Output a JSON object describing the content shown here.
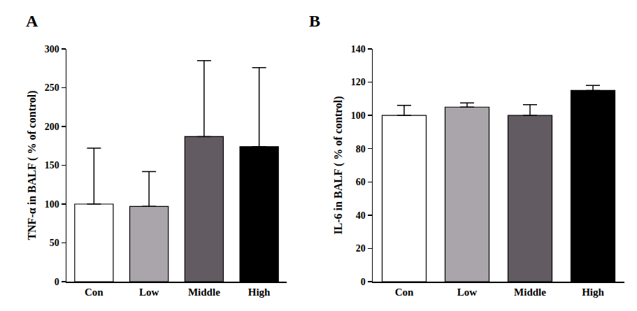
{
  "chart_data": [
    {
      "type": "bar",
      "title": "A",
      "categories": [
        "Con",
        "Low",
        "Middle",
        "High"
      ],
      "values": [
        100,
        97,
        187,
        174
      ],
      "errors": [
        72,
        45,
        98,
        102
      ],
      "colors": [
        "#ffffff",
        "#aaa5aa",
        "#625c62",
        "#000000"
      ],
      "y_label": "TNF-α in BALF ( % of control)",
      "ylim": [
        0,
        300
      ],
      "yticks": [
        0,
        50,
        100,
        150,
        200,
        250,
        300
      ],
      "grid": false
    },
    {
      "type": "bar",
      "title": "B",
      "categories": [
        "Con",
        "Low",
        "Middle",
        "High"
      ],
      "values": [
        100,
        105,
        100,
        115
      ],
      "errors": [
        6,
        2.5,
        6.5,
        3
      ],
      "colors": [
        "#ffffff",
        "#aaa5aa",
        "#625c62",
        "#000000"
      ],
      "y_label": "IL-6 in BALF ( % of control)",
      "ylim": [
        0,
        140
      ],
      "yticks": [
        0,
        20,
        40,
        60,
        80,
        100,
        120,
        140
      ],
      "grid": false
    }
  ]
}
